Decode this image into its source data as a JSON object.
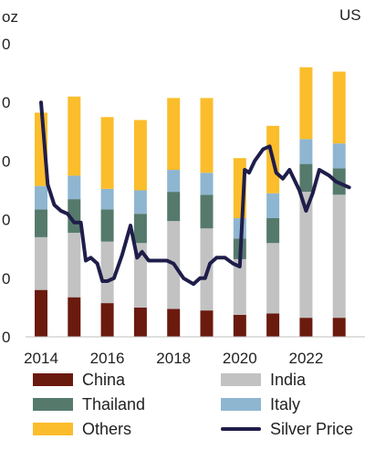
{
  "chart_data": {
    "type": "bar",
    "subtype": "stacked bar with line overlay",
    "left_unit": "oz",
    "right_unit": "US",
    "left_axis_tick_labels": [
      "0",
      "0",
      "0",
      "0",
      "0",
      "0"
    ],
    "x_tick_labels": [
      "2014",
      "2016",
      "2018",
      "2020",
      "2022"
    ],
    "categories": [
      "2014",
      "2015",
      "2016",
      "2017",
      "2018",
      "2019",
      "2020",
      "2021",
      "2022",
      "2023"
    ],
    "ylim": [
      0,
      100
    ],
    "series": [
      {
        "name": "China",
        "color": "#6b1a0e",
        "values": [
          16,
          13.5,
          11.5,
          10,
          9.5,
          9,
          7.5,
          8,
          6.5,
          6.5
        ]
      },
      {
        "name": "India",
        "color": "#c2c2c2",
        "values": [
          18,
          22,
          21,
          22,
          30,
          28,
          19,
          24,
          43,
          42
        ]
      },
      {
        "name": "Thailand",
        "color": "#557a6c",
        "values": [
          9.5,
          11.5,
          11,
          10,
          10,
          11.5,
          7,
          8.5,
          9.5,
          9
        ]
      },
      {
        "name": "Italy",
        "color": "#8fb6d1",
        "values": [
          8,
          8,
          7,
          8,
          7.5,
          7.5,
          7,
          8.5,
          8.5,
          8.5
        ]
      },
      {
        "name": "Others",
        "color": "#fbbd2b",
        "values": [
          25,
          27,
          24.5,
          24,
          24.5,
          25.5,
          20.5,
          23,
          24.5,
          24.5
        ]
      }
    ],
    "line": {
      "name": "Silver Price",
      "color": "#1f1d4a",
      "x": [
        2014.0,
        2014.2,
        2014.4,
        2014.6,
        2014.8,
        2015.0,
        2015.2,
        2015.35,
        2015.5,
        2015.7,
        2015.85,
        2016.0,
        2016.2,
        2016.45,
        2016.7,
        2016.9,
        2017.05,
        2017.25,
        2017.5,
        2017.8,
        2018.0,
        2018.3,
        2018.6,
        2018.8,
        2018.95,
        2019.1,
        2019.3,
        2019.55,
        2019.8,
        2020.0,
        2020.15,
        2020.28,
        2020.45,
        2020.7,
        2020.9,
        2021.1,
        2021.3,
        2021.5,
        2021.8,
        2022.0,
        2022.2,
        2022.4,
        2022.7,
        2022.9,
        2023.1,
        2023.3
      ],
      "values": [
        80,
        52,
        45,
        43,
        42,
        39,
        39,
        26,
        27,
        25,
        19,
        19,
        20,
        28,
        38,
        27,
        29,
        26,
        26,
        26,
        25,
        20,
        18,
        20,
        20,
        25,
        27,
        27,
        25,
        24,
        57,
        56,
        60,
        64,
        65,
        56,
        54,
        57,
        50,
        43,
        49,
        57,
        55,
        53,
        52,
        51
      ]
    },
    "legend": {
      "placement": "bottom",
      "entries": [
        {
          "label": "China",
          "kind": "bar",
          "color": "#6b1a0e"
        },
        {
          "label": "India",
          "kind": "bar",
          "color": "#c2c2c2"
        },
        {
          "label": "Thailand",
          "kind": "bar",
          "color": "#557a6c"
        },
        {
          "label": "Italy",
          "kind": "bar",
          "color": "#8fb6d1"
        },
        {
          "label": "Others",
          "kind": "bar",
          "color": "#fbbd2b"
        },
        {
          "label": "Silver Price",
          "kind": "line",
          "color": "#1f1d4a"
        }
      ]
    },
    "grid": false
  }
}
